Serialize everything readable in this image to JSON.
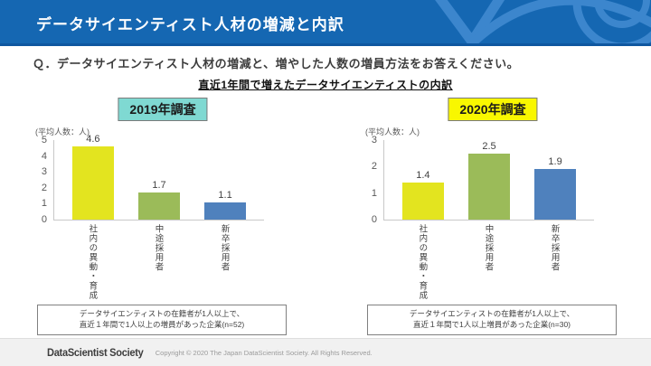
{
  "header": {
    "title": "データサイエンティスト人材の増減と内訳"
  },
  "question": "Ｑ．データサイエンティスト人材の増減と、増やした人数の増員方法をお答えください。",
  "chart_title": "直近1年間で増えたデータサイエンティストの内訳",
  "colors": {
    "header_blue": "#1567b2",
    "header_art_blue": "#3c86cd",
    "badge_2019": "#7fd9d2",
    "badge_2020": "#f9f700",
    "bar_yellow": "#e3e41f",
    "bar_green": "#9bbb59",
    "bar_blue": "#4f81bd"
  },
  "chart_data": [
    {
      "type": "bar",
      "title": "2019年調査",
      "badge_color": "#7fd9d2",
      "unit_label": "(平均人数：人)",
      "categories": [
        "社内の異動・育成",
        "中途採用者",
        "新卒採用者"
      ],
      "values": [
        4.6,
        1.7,
        1.1
      ],
      "bar_colors": [
        "#e3e41f",
        "#9bbb59",
        "#4f81bd"
      ],
      "ylim": [
        0,
        5
      ],
      "yticks": [
        0,
        1,
        2,
        3,
        4,
        5
      ],
      "grid": "off",
      "note_line1": "データサイエンティストの在籍者が1人以上で、",
      "note_line2": "直近１年間で1人以上の増員があった企業(n=52)"
    },
    {
      "type": "bar",
      "title": "2020年調査",
      "badge_color": "#f9f700",
      "unit_label": "(平均人数：人)",
      "categories": [
        "社内の異動・育成",
        "中途採用者",
        "新卒採用者"
      ],
      "values": [
        1.4,
        2.5,
        1.9
      ],
      "bar_colors": [
        "#e3e41f",
        "#9bbb59",
        "#4f81bd"
      ],
      "ylim": [
        0,
        3
      ],
      "yticks": [
        0,
        1,
        2,
        3
      ],
      "grid": "off",
      "note_line1": "データサイエンティストの在籍者が1人以上で、",
      "note_line2": "直近１年間で1人以上増員があった企業(n=30)"
    }
  ],
  "footer": {
    "brand": "DataScientist Society",
    "copyright": "Copyright © 2020  The Japan DataScientist Society. All Rights Reserved."
  }
}
